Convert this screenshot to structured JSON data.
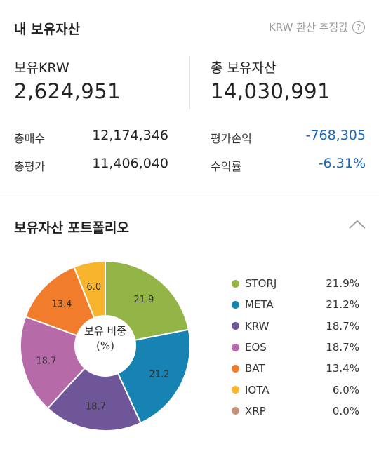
{
  "header": {
    "title": "내 보유자산",
    "estimate_label": "KRW 환산 추정값",
    "help_glyph": "?"
  },
  "summary": {
    "krw_label": "보유KRW",
    "krw_value": "2,624,951",
    "total_label": "총 보유자산",
    "total_value": "14,030,991"
  },
  "stats": {
    "buy_label": "총매수",
    "buy_value": "12,174,346",
    "eval_label": "총평가",
    "eval_value": "11,406,040",
    "pnl_label": "평가손익",
    "pnl_value": "-768,305",
    "rate_label": "수익률",
    "rate_value": "-6.31%"
  },
  "colors": {
    "negative": "#1a66b8"
  },
  "portfolio": {
    "title": "보유자산 포트폴리오",
    "collapse_icon": "chevron-up-icon",
    "center_line1": "보유 비중",
    "center_line2": "(%)"
  },
  "chart_data": {
    "type": "pie",
    "style": "donut",
    "categories": [
      "STORJ",
      "META",
      "KRW",
      "EOS",
      "BAT",
      "IOTA",
      "XRP"
    ],
    "values": [
      21.9,
      21.2,
      18.7,
      18.7,
      13.4,
      6.0,
      0.0
    ],
    "slice_labels": [
      "21.9",
      "21.2",
      "18.7",
      "18.7",
      "13.4",
      "6.0",
      ""
    ],
    "legend_values": [
      "21.9%",
      "21.2%",
      "18.7%",
      "18.7%",
      "13.4%",
      "6.0%",
      "0.0%"
    ],
    "colors": [
      "#93b446",
      "#1783b3",
      "#6e5699",
      "#b66aa8",
      "#f07c2c",
      "#f9b42e",
      "#c6937a"
    ],
    "legend_position": "right"
  }
}
